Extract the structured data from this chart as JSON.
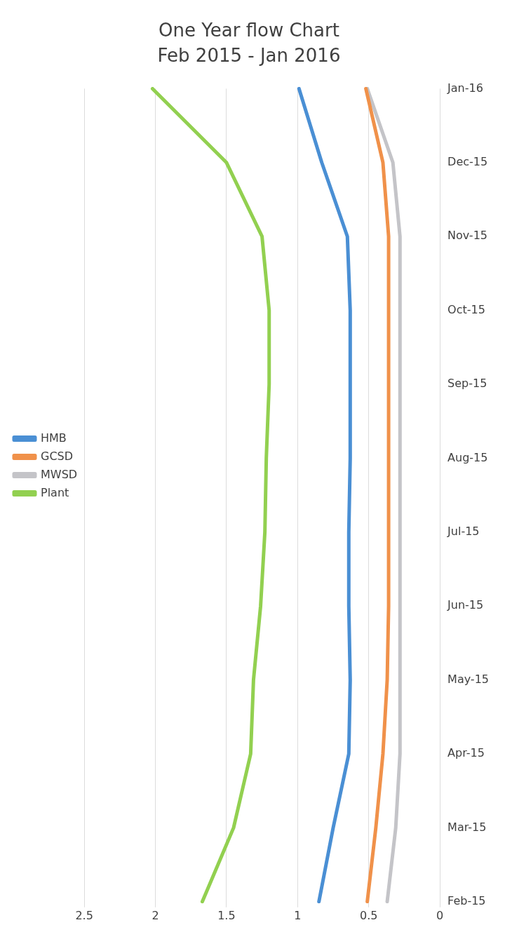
{
  "chart_data": {
    "type": "line",
    "title": "One Year flow Chart",
    "subtitle": "Feb 2015 - Jan 2016",
    "orientation": "horizontal",
    "categories": [
      "Jan-16",
      "Dec-15",
      "Nov-15",
      "Oct-15",
      "Sep-15",
      "Aug-15",
      "Jul-15",
      "Jun-15",
      "May-15",
      "Apr-15",
      "Mar-15",
      "Feb-15"
    ],
    "series": [
      {
        "name": "HMB",
        "color": "#4a8fd4",
        "values": [
          0.99,
          0.83,
          0.65,
          0.63,
          0.63,
          0.63,
          0.64,
          0.64,
          0.63,
          0.64,
          0.75,
          0.85
        ]
      },
      {
        "name": "GCSD",
        "color": "#f0914a",
        "values": [
          0.52,
          0.4,
          0.36,
          0.36,
          0.36,
          0.36,
          0.36,
          0.36,
          0.37,
          0.4,
          0.45,
          0.51
        ]
      },
      {
        "name": "MWSD",
        "color": "#c4c4c8",
        "values": [
          0.51,
          0.33,
          0.28,
          0.28,
          0.28,
          0.28,
          0.28,
          0.28,
          0.28,
          0.28,
          0.31,
          0.37
        ]
      },
      {
        "name": "Plant",
        "color": "#92d050",
        "values": [
          2.02,
          1.5,
          1.25,
          1.2,
          1.2,
          1.22,
          1.23,
          1.26,
          1.31,
          1.33,
          1.45,
          1.67
        ]
      }
    ],
    "xlim": [
      2.5,
      0
    ],
    "xticks": [
      2.5,
      2,
      1.5,
      1,
      0.5,
      0
    ],
    "grid": "x",
    "legend": "left",
    "marker": "none",
    "line_style": "solid"
  }
}
